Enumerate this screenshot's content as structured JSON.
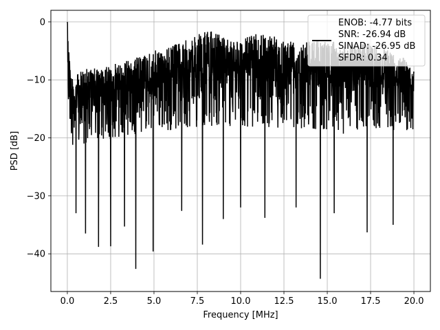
{
  "chart_data": {
    "type": "line",
    "xlabel": "Frequency [MHz]",
    "ylabel": "PSD [dB]",
    "xlim": [
      -0.95,
      20.95
    ],
    "ylim": [
      -46.5,
      2.0
    ],
    "xticks": [
      0.0,
      2.5,
      5.0,
      7.5,
      10.0,
      12.5,
      15.0,
      17.5,
      20.0
    ],
    "xtick_labels": [
      "0.0",
      "2.5",
      "5.0",
      "7.5",
      "10.0",
      "12.5",
      "15.0",
      "17.5",
      "20.0"
    ],
    "yticks": [
      0,
      -10,
      -20,
      -30,
      -40
    ],
    "ytick_labels": [
      "0",
      "−10",
      "−20",
      "−30",
      "−40"
    ],
    "grid": true,
    "legend_position": "upper right",
    "series": [
      {
        "name": "ENOB: -4.77 bits\nSNR: -26.94 dB\nSINAD: -26.95 dB\nSFDR: 0.34",
        "color": "#000000",
        "x_range": [
          0.0,
          20.0
        ],
        "points": 2000,
        "upper_envelope": [
          [
            0.0,
            0.0
          ],
          [
            0.05,
            -1.0
          ],
          [
            0.15,
            -6.0
          ],
          [
            0.3,
            -10.0
          ],
          [
            0.6,
            -9.0
          ],
          [
            1.0,
            -8.0
          ],
          [
            2.0,
            -8.0
          ],
          [
            3.0,
            -7.0
          ],
          [
            4.0,
            -6.0
          ],
          [
            5.0,
            -5.0
          ],
          [
            6.0,
            -4.0
          ],
          [
            7.0,
            -3.0
          ],
          [
            8.0,
            -1.5
          ],
          [
            9.0,
            -2.0
          ],
          [
            10.0,
            -3.0
          ],
          [
            11.0,
            -2.0
          ],
          [
            12.0,
            -2.5
          ],
          [
            13.0,
            -3.0
          ],
          [
            14.0,
            -3.0
          ],
          [
            15.0,
            -3.0
          ],
          [
            16.0,
            -4.0
          ],
          [
            17.0,
            -3.5
          ],
          [
            18.0,
            -4.0
          ],
          [
            19.0,
            -5.0
          ],
          [
            20.0,
            -8.0
          ]
        ],
        "lower_envelope": [
          [
            0.0,
            -20.0
          ],
          [
            0.1,
            -24.0
          ],
          [
            0.5,
            -28.0
          ],
          [
            1.0,
            -27.0
          ],
          [
            2.0,
            -26.0
          ],
          [
            4.0,
            -25.0
          ],
          [
            6.0,
            -25.0
          ],
          [
            8.0,
            -25.0
          ],
          [
            10.0,
            -25.0
          ],
          [
            12.0,
            -25.0
          ],
          [
            14.0,
            -25.0
          ],
          [
            16.0,
            -26.0
          ],
          [
            18.0,
            -25.0
          ],
          [
            20.0,
            -24.0
          ]
        ],
        "dips": [
          [
            0.5,
            -33.0
          ],
          [
            1.05,
            -36.5
          ],
          [
            1.8,
            -38.8
          ],
          [
            2.5,
            -38.7
          ],
          [
            3.3,
            -35.3
          ],
          [
            3.95,
            -42.6
          ],
          [
            4.95,
            -39.6
          ],
          [
            6.6,
            -32.6
          ],
          [
            7.8,
            -38.4
          ],
          [
            9.0,
            -34.0
          ],
          [
            10.0,
            -32.0
          ],
          [
            11.4,
            -33.8
          ],
          [
            13.2,
            -32.0
          ],
          [
            14.6,
            -44.3
          ],
          [
            15.4,
            -33.0
          ],
          [
            17.3,
            -36.3
          ],
          [
            18.8,
            -35.0
          ]
        ]
      }
    ]
  }
}
